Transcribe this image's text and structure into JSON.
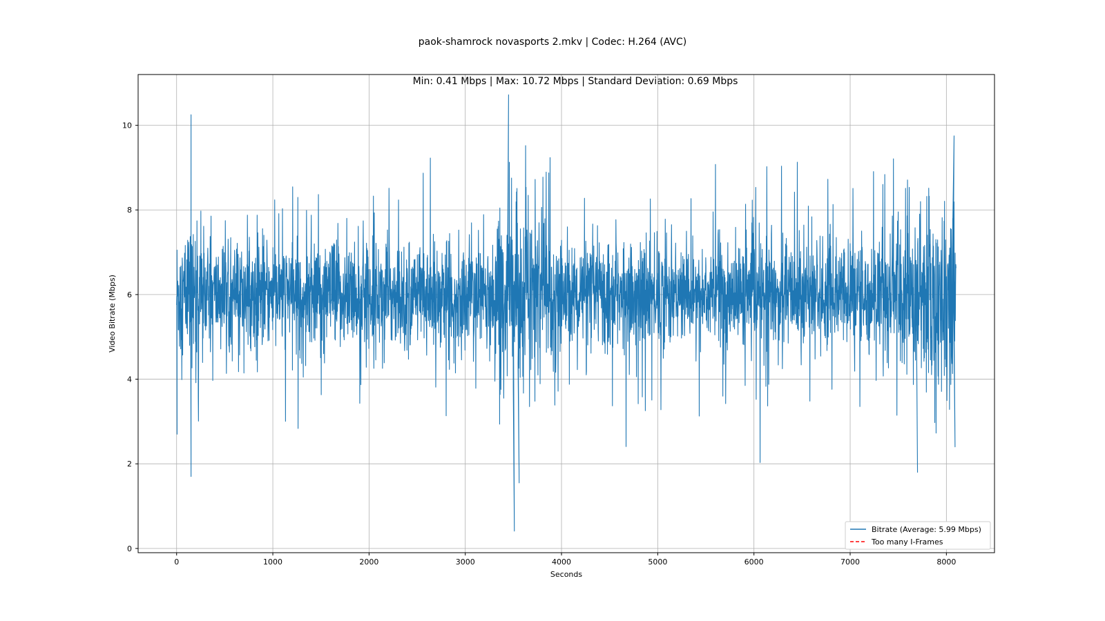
{
  "figure": {
    "title_line1": "paok-shamrock novasports 2.mkv | Codec: H.264 (AVC)",
    "title_line2": "Min: 0.41 Mbps | Max: 10.72 Mbps | Standard Deviation: 0.69 Mbps"
  },
  "chart_data": {
    "type": "line",
    "title": "paok-shamrock novasports 2.mkv | Codec: H.264 (AVC)",
    "subtitle": "Min: 0.41 Mbps | Max: 10.72 Mbps | Standard Deviation: 0.69 Mbps",
    "xlabel": "Seconds",
    "ylabel": "Video Bitrate (Mbps)",
    "xlim": [
      -400,
      8500
    ],
    "ylim": [
      -0.1,
      11.2
    ],
    "x_ticks": [
      0,
      1000,
      2000,
      3000,
      4000,
      5000,
      6000,
      7000,
      8000
    ],
    "y_ticks": [
      0,
      2,
      4,
      6,
      8,
      10
    ],
    "grid": true,
    "legend_position": "lower-right",
    "colors": {
      "bitrate": "#1f77b4",
      "iframes": "#ff0000",
      "grid": "#b0b0b0"
    },
    "series": [
      {
        "name": "Bitrate (Average: 5.99 Mbps)",
        "style": "solid",
        "x_start": 0,
        "x_end": 8100,
        "summary": {
          "min": 0.41,
          "max": 10.72,
          "mean": 5.99,
          "std": 0.69
        },
        "notable_points": [
          {
            "x": 5,
            "y": 2.7
          },
          {
            "x": 150,
            "y": 10.25
          },
          {
            "x": 150,
            "y": 1.7
          },
          {
            "x": 3450,
            "y": 10.72
          },
          {
            "x": 3510,
            "y": 0.41
          },
          {
            "x": 3560,
            "y": 1.55
          },
          {
            "x": 7700,
            "y": 1.8
          },
          {
            "x": 8080,
            "y": 9.75
          },
          {
            "x": 8090,
            "y": 2.4
          }
        ]
      },
      {
        "name": "Too many I-Frames",
        "style": "dashed",
        "points": []
      }
    ]
  }
}
